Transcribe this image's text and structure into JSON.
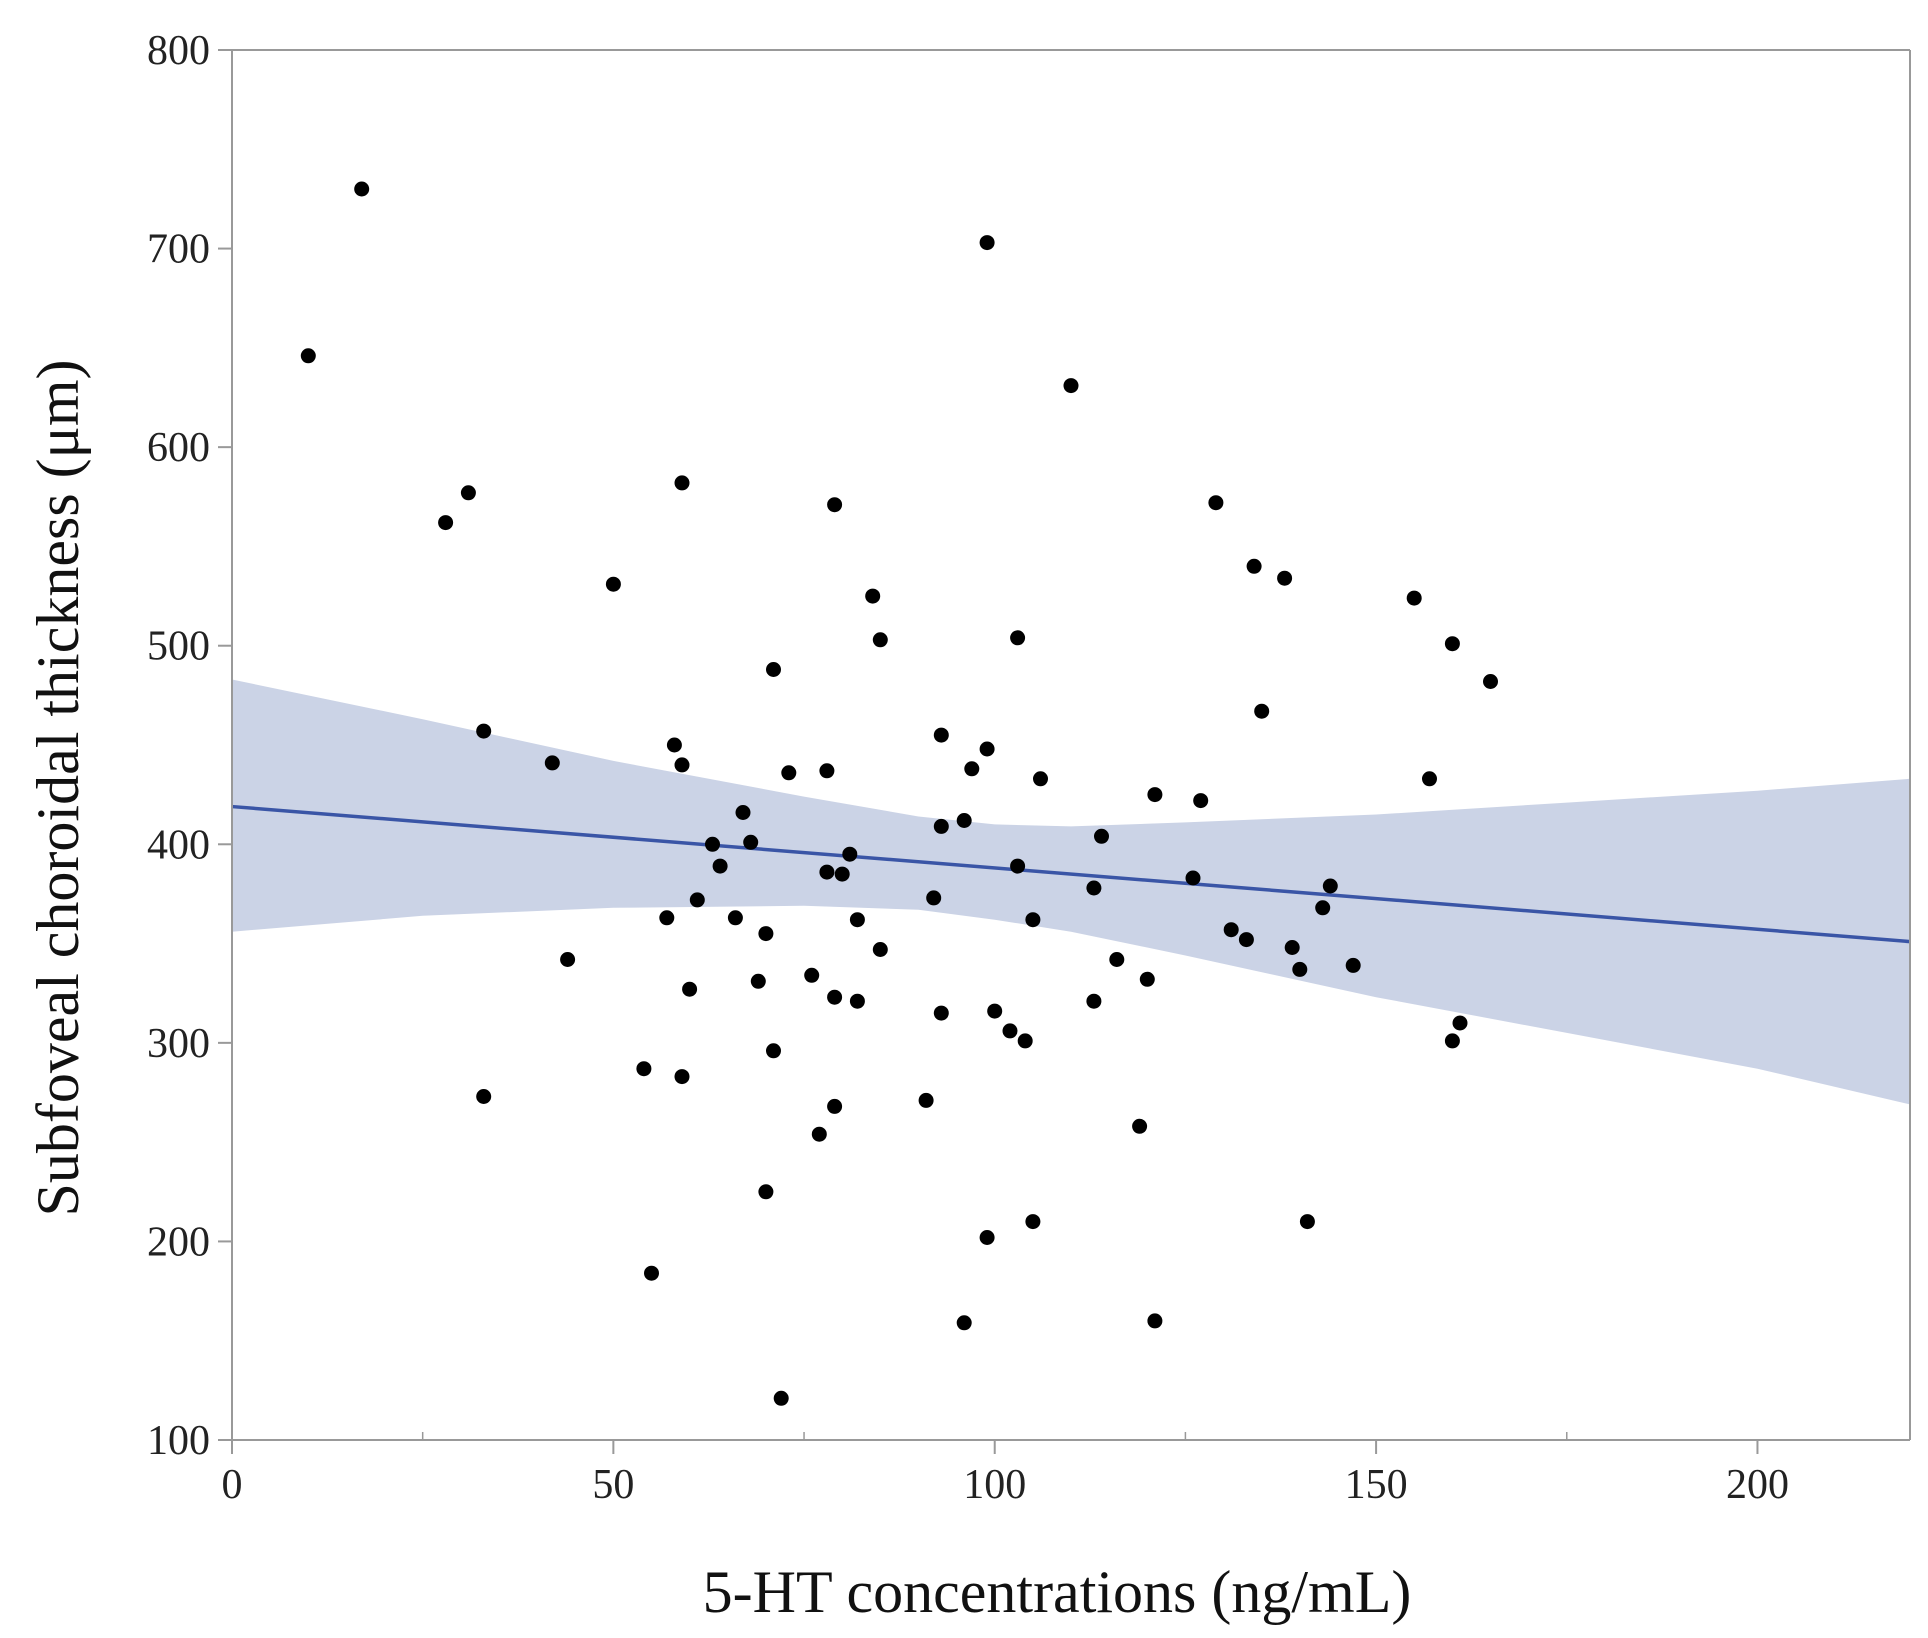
{
  "chart_data": {
    "type": "scatter",
    "title": "",
    "xlabel": "5-HT concentrations (ng/mL)",
    "ylabel": "Subfoveal choroidal thickness (μm)",
    "xlim": [
      0,
      220
    ],
    "ylim": [
      100,
      800
    ],
    "x_ticks": [
      0,
      50,
      100,
      150,
      200
    ],
    "y_ticks": [
      100,
      200,
      300,
      400,
      500,
      600,
      700,
      800
    ],
    "x_tick_labels": [
      "0",
      "50",
      "100",
      "150",
      "200"
    ],
    "y_tick_labels": [
      "100",
      "200",
      "300",
      "400",
      "500",
      "600",
      "700",
      "800"
    ],
    "x_minor_ticks": [
      25,
      75,
      125,
      175
    ],
    "grid": false,
    "points": [
      [
        10,
        646
      ],
      [
        17,
        730
      ],
      [
        28,
        562
      ],
      [
        31,
        577
      ],
      [
        33,
        457
      ],
      [
        33,
        273
      ],
      [
        42,
        441
      ],
      [
        44,
        342
      ],
      [
        50,
        531
      ],
      [
        54,
        287
      ],
      [
        55,
        184
      ],
      [
        57,
        363
      ],
      [
        58,
        450
      ],
      [
        59,
        440
      ],
      [
        59,
        582
      ],
      [
        59,
        283
      ],
      [
        60,
        327
      ],
      [
        61,
        372
      ],
      [
        63,
        400
      ],
      [
        64,
        389
      ],
      [
        66,
        363
      ],
      [
        67,
        416
      ],
      [
        68,
        401
      ],
      [
        69,
        331
      ],
      [
        70,
        355
      ],
      [
        70,
        225
      ],
      [
        71,
        488
      ],
      [
        71,
        296
      ],
      [
        72,
        121
      ],
      [
        73,
        436
      ],
      [
        76,
        334
      ],
      [
        77,
        254
      ],
      [
        78,
        437
      ],
      [
        78,
        386
      ],
      [
        79,
        571
      ],
      [
        79,
        323
      ],
      [
        79,
        268
      ],
      [
        80,
        385
      ],
      [
        81,
        395
      ],
      [
        82,
        362
      ],
      [
        82,
        321
      ],
      [
        84,
        525
      ],
      [
        85,
        503
      ],
      [
        85,
        347
      ],
      [
        91,
        271
      ],
      [
        92,
        373
      ],
      [
        93,
        455
      ],
      [
        93,
        409
      ],
      [
        93,
        315
      ],
      [
        96,
        412
      ],
      [
        96,
        159
      ],
      [
        97,
        438
      ],
      [
        99,
        703
      ],
      [
        99,
        448
      ],
      [
        99,
        202
      ],
      [
        100,
        316
      ],
      [
        102,
        306
      ],
      [
        103,
        504
      ],
      [
        103,
        389
      ],
      [
        104,
        301
      ],
      [
        105,
        362
      ],
      [
        105,
        210
      ],
      [
        106,
        433
      ],
      [
        110,
        631
      ],
      [
        113,
        378
      ],
      [
        113,
        321
      ],
      [
        114,
        404
      ],
      [
        116,
        342
      ],
      [
        119,
        258
      ],
      [
        120,
        332
      ],
      [
        121,
        425
      ],
      [
        121,
        160
      ],
      [
        126,
        383
      ],
      [
        127,
        422
      ],
      [
        129,
        572
      ],
      [
        131,
        357
      ],
      [
        133,
        352
      ],
      [
        134,
        540
      ],
      [
        135,
        467
      ],
      [
        138,
        534
      ],
      [
        139,
        348
      ],
      [
        140,
        337
      ],
      [
        141,
        210
      ],
      [
        143,
        368
      ],
      [
        144,
        379
      ],
      [
        147,
        339
      ],
      [
        155,
        524
      ],
      [
        157,
        433
      ],
      [
        160,
        501
      ],
      [
        160,
        301
      ],
      [
        161,
        310
      ],
      [
        165,
        482
      ]
    ],
    "fit_line": {
      "x": [
        0,
        220
      ],
      "y": [
        419,
        351
      ]
    },
    "confidence_band": {
      "x": [
        0,
        25,
        50,
        75,
        90,
        100,
        110,
        125,
        150,
        175,
        200,
        220
      ],
      "upper": [
        483,
        463,
        442,
        424,
        414,
        410,
        409,
        411,
        415,
        421,
        427,
        433
      ],
      "lower": [
        356,
        364,
        368,
        369,
        367,
        362,
        356,
        344,
        323,
        305,
        287,
        269
      ]
    },
    "colors": {
      "points": "#000000",
      "fit_line": "#3a55a6",
      "band": "#cbd3e6",
      "axes": "#999999",
      "text": "#222222"
    }
  }
}
